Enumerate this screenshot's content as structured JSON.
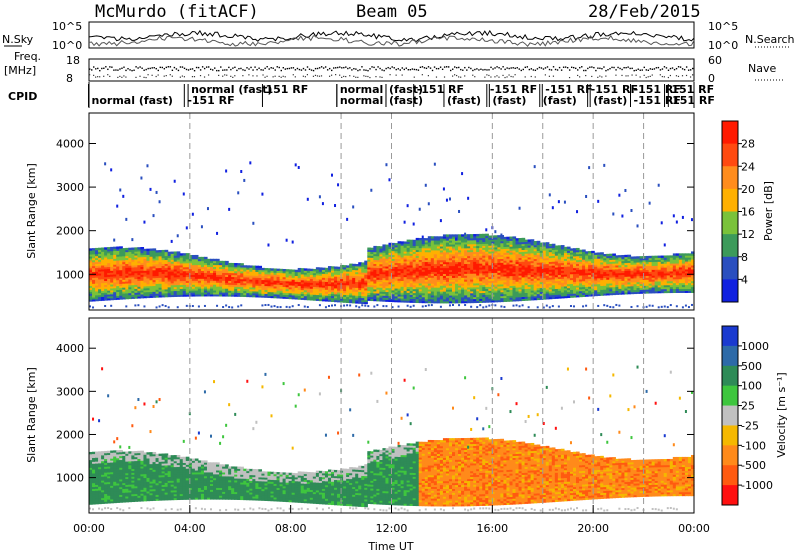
{
  "header": {
    "radar": "McMurdo (fitACF)",
    "beam": "Beam 05",
    "date": "28/Feb/2015"
  },
  "strips": {
    "nsky_label": "N.Sky",
    "nsky_ticks": [
      "10^5",
      "10^0"
    ],
    "nsearch_label": "N.Search",
    "nsearch_ticks": [
      "10^5",
      "10^0"
    ],
    "freq_label": [
      "Freq.",
      "[MHz]"
    ],
    "freq_ticks": [
      "18",
      "8"
    ],
    "nave_label": "Nave",
    "nave_ticks": [
      "60",
      "0"
    ],
    "cpid_label": "CPID",
    "cpid_annotations": [
      {
        "text": "normal (fast)",
        "t": 0.1,
        "row": 1
      },
      {
        "text": "-151 RF",
        "t": 3.9,
        "row": 1
      },
      {
        "text": "normal (fast)",
        "t": 4.05,
        "row": 0
      },
      {
        "text": "151 RF",
        "t": 7.0,
        "row": 0
      },
      {
        "text": "normal",
        "t": 9.95,
        "row": 0
      },
      {
        "text": "normal",
        "t": 9.95,
        "row": 1
      },
      {
        "text": "(fast)",
        "t": 11.9,
        "row": 0
      },
      {
        "text": "(fast)",
        "t": 11.9,
        "row": 1
      },
      {
        "text": "-151 RF",
        "t": 13.0,
        "row": 0
      },
      {
        "text": "(fast)",
        "t": 14.2,
        "row": 1
      },
      {
        "text": "-151 RF",
        "t": 15.9,
        "row": 0
      },
      {
        "text": "(fast)",
        "t": 16.0,
        "row": 1
      },
      {
        "text": "-151 RF",
        "t": 18.1,
        "row": 0
      },
      {
        "text": "(fast)",
        "t": 18.0,
        "row": 1
      },
      {
        "text": "-151 RF",
        "t": 19.9,
        "row": 0
      },
      {
        "text": "(fast)",
        "t": 20.0,
        "row": 1
      },
      {
        "text": "-151 RF",
        "t": 21.6,
        "row": 0
      },
      {
        "text": "-151 RF",
        "t": 21.6,
        "row": 1
      },
      {
        "text": "151 RF",
        "t": 23.1,
        "row": 0
      },
      {
        "text": "-151 RF",
        "t": 22.95,
        "row": 1
      }
    ]
  },
  "chart_data": [
    {
      "type": "heatmap",
      "panel": "power",
      "xlabel": "",
      "ylabel": "Slant Range [km]",
      "xlim": [
        0,
        24
      ],
      "ylim": [
        180,
        4700
      ],
      "yticks": [
        1000,
        2000,
        3000,
        4000
      ],
      "ytick_labels": [
        "1000",
        "2000",
        "3000",
        "4000"
      ],
      "colorbar_label": "Power [dB]",
      "colorbar_ticks": [
        "28",
        "24",
        "20",
        "16",
        "12",
        "8",
        "4"
      ],
      "colorbar_colors": [
        "#ff1a00",
        "#ff4a10",
        "#ff8c1c",
        "#ffb000",
        "#7ac23a",
        "#3c9a5a",
        "#2a4fbf",
        "#1020e0"
      ],
      "notes": "Scatter is concentrated between ~500 and ~1600 km all day; strongest (red) 600–1200 km; sparse weak echoes to ~3500 km."
    },
    {
      "type": "heatmap",
      "panel": "velocity",
      "xlabel": "Time UT",
      "ylabel": "Slant Range [km]",
      "xlim": [
        0,
        24
      ],
      "ylim": [
        180,
        4700
      ],
      "yticks": [
        1000,
        2000,
        3000,
        4000
      ],
      "ytick_labels": [
        "1000",
        "2000",
        "3000",
        "4000"
      ],
      "xticks": [
        0,
        4,
        8,
        12,
        16,
        20,
        24
      ],
      "xtick_labels": [
        "00:00",
        "04:00",
        "08:00",
        "12:00",
        "16:00",
        "20:00",
        "00:00"
      ],
      "colorbar_label": "Velocity [m s⁻¹]",
      "colorbar_ticks": [
        "1000",
        "500",
        "100",
        "25",
        "-25",
        "-100",
        "-500",
        "-1000"
      ],
      "colorbar_colors": [
        "#1a3ad0",
        "#2d6aa8",
        "#2e8b57",
        "#3ec63e",
        "#c0c0c0",
        "#f5b800",
        "#ff8a1a",
        "#ff5a10",
        "#ff1010"
      ],
      "notes": "00–13 UT mostly green (positive/toward) with grey ground scatter; 13–24 UT mostly orange (negative/away)."
    }
  ]
}
